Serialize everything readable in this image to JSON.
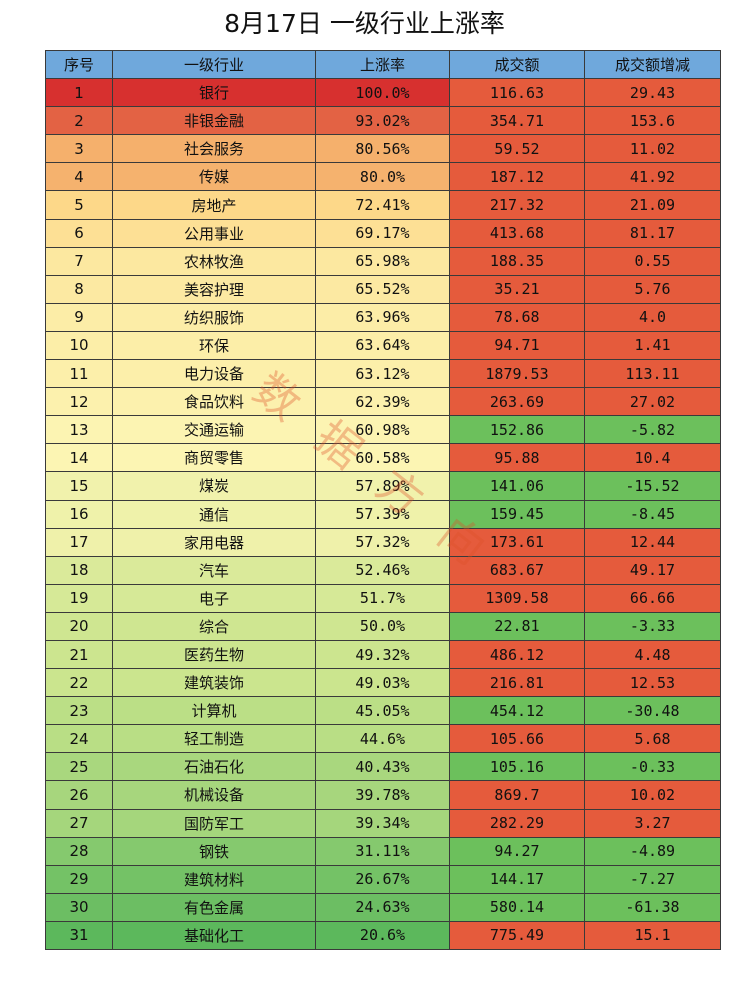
{
  "title": "8月17日  一级行业上涨率",
  "watermark": "数据方向",
  "colors": {
    "header": "#6fa8dc",
    "rise_high": "#d7302f",
    "rise_mid": "#fdd98a",
    "rise_low": "#5cb85c",
    "positive": "#e55b3c",
    "negative": "#6cc05c"
  },
  "chart_data": {
    "type": "table",
    "title": "8月17日  一级行业上涨率",
    "columns": [
      "序号",
      "一级行业",
      "上涨率",
      "成交额",
      "成交额增减"
    ],
    "rows": [
      [
        "1",
        "银行",
        "100.0%",
        "116.63",
        "29.43"
      ],
      [
        "2",
        "非银金融",
        "93.02%",
        "354.71",
        "153.6"
      ],
      [
        "3",
        "社会服务",
        "80.56%",
        "59.52",
        "11.02"
      ],
      [
        "4",
        "传媒",
        "80.0%",
        "187.12",
        "41.92"
      ],
      [
        "5",
        "房地产",
        "72.41%",
        "217.32",
        "21.09"
      ],
      [
        "6",
        "公用事业",
        "69.17%",
        "413.68",
        "81.17"
      ],
      [
        "7",
        "农林牧渔",
        "65.98%",
        "188.35",
        "0.55"
      ],
      [
        "8",
        "美容护理",
        "65.52%",
        "35.21",
        "5.76"
      ],
      [
        "9",
        "纺织服饰",
        "63.96%",
        "78.68",
        "4.0"
      ],
      [
        "10",
        "环保",
        "63.64%",
        "94.71",
        "1.41"
      ],
      [
        "11",
        "电力设备",
        "63.12%",
        "1879.53",
        "113.11"
      ],
      [
        "12",
        "食品饮料",
        "62.39%",
        "263.69",
        "27.02"
      ],
      [
        "13",
        "交通运输",
        "60.98%",
        "152.86",
        "-5.82"
      ],
      [
        "14",
        "商贸零售",
        "60.58%",
        "95.88",
        "10.4"
      ],
      [
        "15",
        "煤炭",
        "57.89%",
        "141.06",
        "-15.52"
      ],
      [
        "16",
        "通信",
        "57.39%",
        "159.45",
        "-8.45"
      ],
      [
        "17",
        "家用电器",
        "57.32%",
        "173.61",
        "12.44"
      ],
      [
        "18",
        "汽车",
        "52.46%",
        "683.67",
        "49.17"
      ],
      [
        "19",
        "电子",
        "51.7%",
        "1309.58",
        "66.66"
      ],
      [
        "20",
        "综合",
        "50.0%",
        "22.81",
        "-3.33"
      ],
      [
        "21",
        "医药生物",
        "49.32%",
        "486.12",
        "4.48"
      ],
      [
        "22",
        "建筑装饰",
        "49.03%",
        "216.81",
        "12.53"
      ],
      [
        "23",
        "计算机",
        "45.05%",
        "454.12",
        "-30.48"
      ],
      [
        "24",
        "轻工制造",
        "44.6%",
        "105.66",
        "5.68"
      ],
      [
        "25",
        "石油石化",
        "40.43%",
        "105.16",
        "-0.33"
      ],
      [
        "26",
        "机械设备",
        "39.78%",
        "869.7",
        "10.02"
      ],
      [
        "27",
        "国防军工",
        "39.34%",
        "282.29",
        "3.27"
      ],
      [
        "28",
        "钢铁",
        "31.11%",
        "94.27",
        "-4.89"
      ],
      [
        "29",
        "建筑材料",
        "26.67%",
        "144.17",
        "-7.27"
      ],
      [
        "30",
        "有色金属",
        "24.63%",
        "580.14",
        "-61.38"
      ],
      [
        "31",
        "基础化工",
        "20.6%",
        "775.49",
        "15.1"
      ]
    ]
  }
}
